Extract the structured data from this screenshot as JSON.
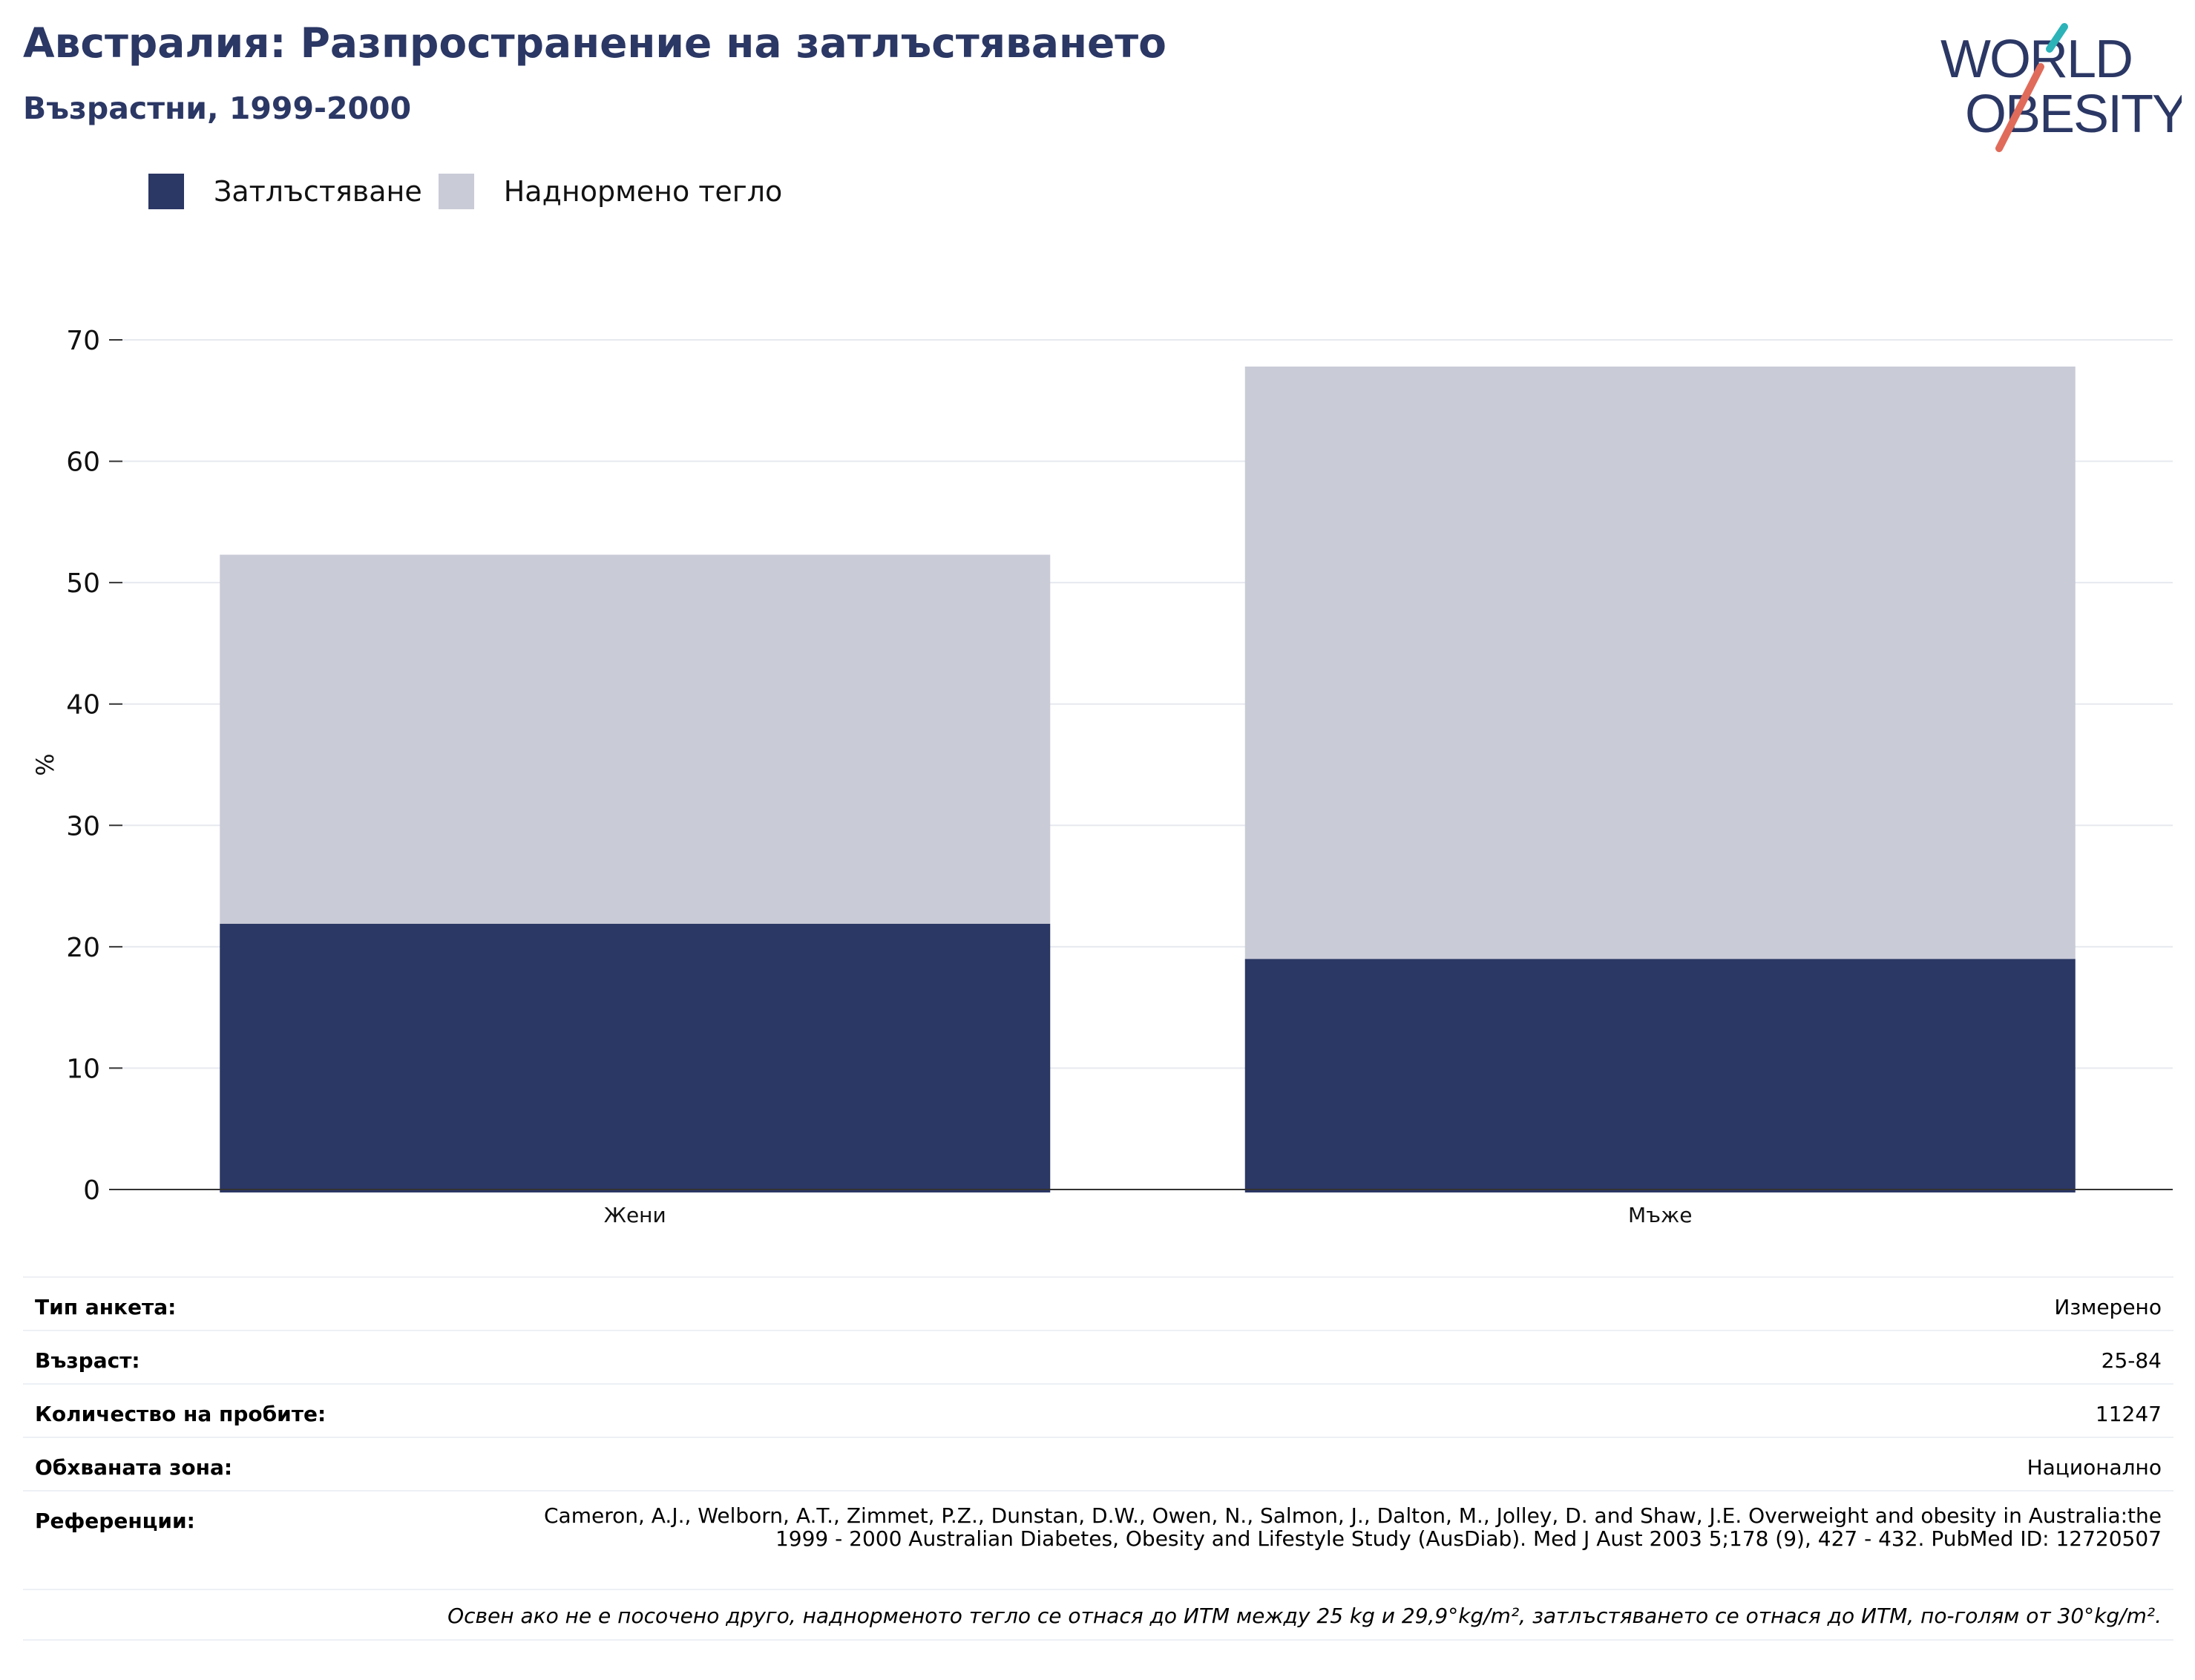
{
  "header": {
    "title": "Австралия: Разпространение на затлъстяването",
    "subtitle": "Възрастни, 1999-2000"
  },
  "logo": {
    "line1": "WORLD",
    "line2": "OBESITY",
    "colors": {
      "text": "#2b3764",
      "accent_teal": "#2bb3b8",
      "accent_coral": "#e06b5a"
    }
  },
  "colors": {
    "obesity": "#2b3764",
    "overweight": "#c9cbd7",
    "grid": "#e6e9ef",
    "axis": "#333333"
  },
  "chart_data": {
    "type": "bar",
    "stacked": true,
    "categories": [
      "Жени",
      "Мъже"
    ],
    "series": [
      {
        "name": "Затлъстяване",
        "values": [
          21.9,
          19.0
        ]
      },
      {
        "name": "Наднормено тегло",
        "values": [
          30.4,
          48.8
        ]
      }
    ],
    "ylabel": "%",
    "ylim": [
      0,
      70
    ],
    "yticks": [
      0,
      10,
      20,
      30,
      40,
      50,
      60,
      70
    ],
    "grid": true,
    "legend_position": "top-left"
  },
  "info": {
    "rows": [
      {
        "label": "Тип анкета:",
        "value": "Измерено"
      },
      {
        "label": "Възраст:",
        "value": "25-84"
      },
      {
        "label": "Количество на пробите:",
        "value": "11247"
      },
      {
        "label": "Обхваната зона:",
        "value": "Национално"
      }
    ],
    "references_label": "Референции:",
    "references_value": "Cameron, A.J., Welborn, A.T., Zimmet, P.Z., Dunstan, D.W., Owen, N., Salmon, J., Dalton, M., Jolley, D. and Shaw, J.E. Overweight and obesity in Australia:the 1999 - 2000 Australian Diabetes, Obesity and Lifestyle Study (AusDiab). Med J Aust 2003 5;178 (9), 427 - 432. PubMed ID: 12720507",
    "note": "Освен ако не е посочено друго, наднорменото тегло се отнася до ИТМ между 25 kg и 29,9°kg/m², затлъстяването се отнася до ИТМ, по-голям от 30°kg/m²."
  }
}
